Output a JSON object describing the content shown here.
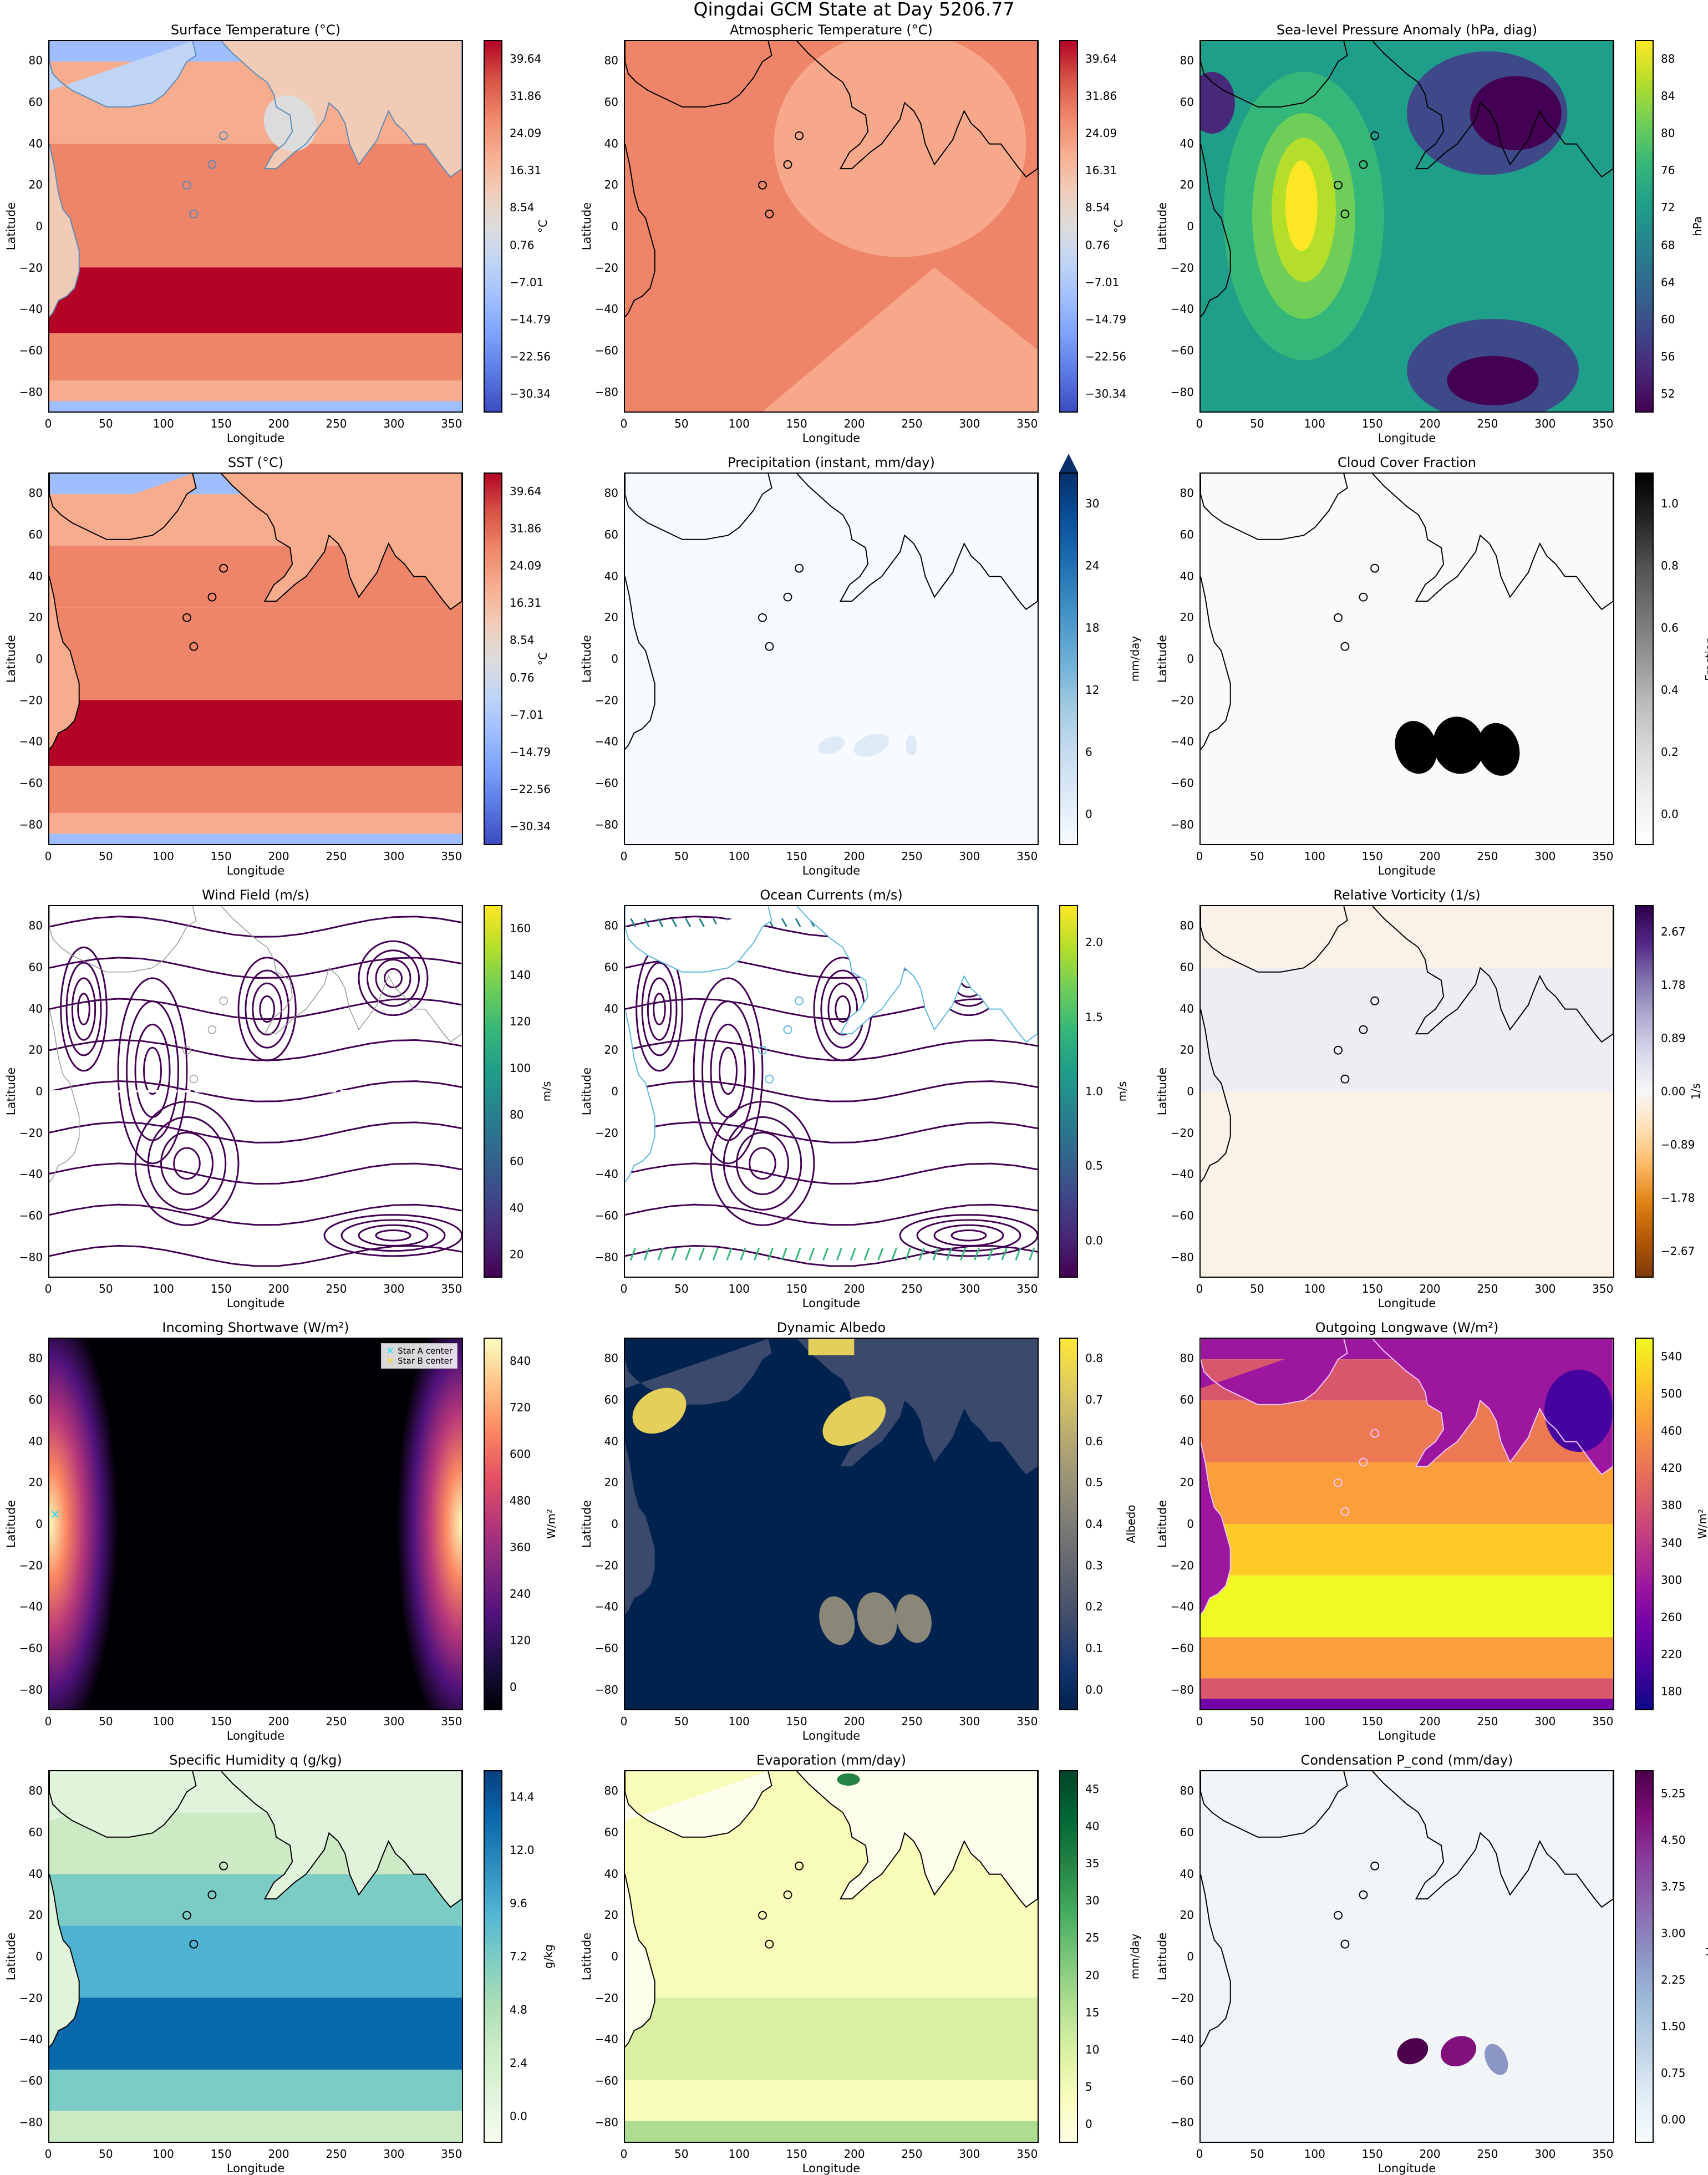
{
  "figure_title": "Qingdai GCM State at Day 5206.77",
  "chart_data": [
    {
      "type": "heatmap",
      "title": "Surface Temperature (°C)",
      "xlabel": "Longitude",
      "ylabel": "Latitude",
      "xlim": [
        0,
        360
      ],
      "ylim": [
        -90,
        90
      ],
      "xticks": [
        "0",
        "50",
        "100",
        "150",
        "200",
        "250",
        "300",
        "350"
      ],
      "yticks": [
        "80",
        "60",
        "40",
        "20",
        "0",
        "−20",
        "−40",
        "−60",
        "−80"
      ],
      "colorbar": {
        "label": "°C",
        "ticks": [
          "39.64",
          "31.86",
          "24.09",
          "16.31",
          "8.54",
          "0.76",
          "−7.01",
          "−14.79",
          "−22.56",
          "−30.34"
        ],
        "colors": [
          "#3b4cc0",
          "#5977e3",
          "#7b9ff9",
          "#9ebeff",
          "#c0d4f5",
          "#dddcdc",
          "#f2cbb7",
          "#f7ac8e",
          "#ee8468",
          "#d65244",
          "#b40426"
        ]
      },
      "field": "surface_temperature"
    },
    {
      "type": "heatmap",
      "title": "Atmospheric Temperature (°C)",
      "xlabel": "Longitude",
      "ylabel": "Latitude",
      "xlim": [
        0,
        360
      ],
      "ylim": [
        -90,
        90
      ],
      "xticks": [
        "0",
        "50",
        "100",
        "150",
        "200",
        "250",
        "300",
        "350"
      ],
      "yticks": [
        "80",
        "60",
        "40",
        "20",
        "0",
        "−20",
        "−40",
        "−60",
        "−80"
      ],
      "colorbar": {
        "label": "°C",
        "ticks": [
          "39.64",
          "31.86",
          "24.09",
          "16.31",
          "8.54",
          "0.76",
          "−7.01",
          "−14.79",
          "−22.56",
          "−30.34"
        ],
        "colors": [
          "#3b4cc0",
          "#5977e3",
          "#7b9ff9",
          "#9ebeff",
          "#c0d4f5",
          "#dddcdc",
          "#f2cbb7",
          "#f7ac8e",
          "#ee8468",
          "#d65244",
          "#b40426"
        ]
      },
      "field": "atmospheric_temperature"
    },
    {
      "type": "heatmap",
      "title": "Sea-level Pressure Anomaly (hPa, diag)",
      "xlabel": "Longitude",
      "ylabel": "Latitude",
      "xlim": [
        0,
        360
      ],
      "ylim": [
        -90,
        90
      ],
      "xticks": [
        "0",
        "50",
        "100",
        "150",
        "200",
        "250",
        "300",
        "350"
      ],
      "yticks": [
        "80",
        "60",
        "40",
        "20",
        "0",
        "−20",
        "−40",
        "−60",
        "−80"
      ],
      "colorbar": {
        "label": "hPa",
        "ticks": [
          "88",
          "84",
          "80",
          "76",
          "72",
          "68",
          "64",
          "60",
          "56",
          "52"
        ],
        "colors": [
          "#440154",
          "#482878",
          "#3e4989",
          "#31688e",
          "#26828e",
          "#1f9e89",
          "#35b779",
          "#6ece58",
          "#b5de2b",
          "#fde725"
        ]
      },
      "field": "slp_anomaly"
    },
    {
      "type": "heatmap",
      "title": "SST (°C)",
      "xlabel": "Longitude",
      "ylabel": "Latitude",
      "xlim": [
        0,
        360
      ],
      "ylim": [
        -90,
        90
      ],
      "xticks": [
        "0",
        "50",
        "100",
        "150",
        "200",
        "250",
        "300",
        "350"
      ],
      "yticks": [
        "80",
        "60",
        "40",
        "20",
        "0",
        "−20",
        "−40",
        "−60",
        "−80"
      ],
      "colorbar": {
        "label": "°C",
        "ticks": [
          "39.64",
          "31.86",
          "24.09",
          "16.31",
          "8.54",
          "0.76",
          "−7.01",
          "−14.79",
          "−22.56",
          "−30.34"
        ],
        "colors": [
          "#3b4cc0",
          "#5977e3",
          "#7b9ff9",
          "#9ebeff",
          "#c0d4f5",
          "#dddcdc",
          "#f2cbb7",
          "#f7ac8e",
          "#ee8468",
          "#d65244",
          "#b40426"
        ]
      },
      "field": "sst"
    },
    {
      "type": "heatmap",
      "title": "Precipitation (instant, mm/day)",
      "xlabel": "Longitude",
      "ylabel": "Latitude",
      "xlim": [
        0,
        360
      ],
      "ylim": [
        -90,
        90
      ],
      "xticks": [
        "0",
        "50",
        "100",
        "150",
        "200",
        "250",
        "300",
        "350"
      ],
      "yticks": [
        "80",
        "60",
        "40",
        "20",
        "0",
        "−20",
        "−40",
        "−60",
        "−80"
      ],
      "colorbar": {
        "label": "mm/day",
        "ticks": [
          "30",
          "24",
          "18",
          "12",
          "6",
          "0"
        ],
        "extend": "max",
        "colors": [
          "#f7fbff",
          "#deebf7",
          "#c6dbef",
          "#9ecae1",
          "#6baed6",
          "#4292c6",
          "#2171b5",
          "#08519c",
          "#08306b"
        ]
      },
      "field": "precipitation"
    },
    {
      "type": "heatmap",
      "title": "Cloud Cover Fraction",
      "xlabel": "Longitude",
      "ylabel": "Latitude",
      "xlim": [
        0,
        360
      ],
      "ylim": [
        -90,
        90
      ],
      "xticks": [
        "0",
        "50",
        "100",
        "150",
        "200",
        "250",
        "300",
        "350"
      ],
      "yticks": [
        "80",
        "60",
        "40",
        "20",
        "0",
        "−20",
        "−40",
        "−60",
        "−80"
      ],
      "colorbar": {
        "label": "Fraction",
        "ticks": [
          "1.0",
          "0.8",
          "0.6",
          "0.4",
          "0.2",
          "0.0"
        ],
        "colors": [
          "#ffffff",
          "#f0f0f0",
          "#d9d9d9",
          "#bdbdbd",
          "#969696",
          "#737373",
          "#525252",
          "#252525",
          "#000000"
        ]
      },
      "field": "cloud_cover"
    },
    {
      "type": "streamplot",
      "title": "Wind Field (m/s)",
      "xlabel": "Longitude",
      "ylabel": "Latitude",
      "xlim": [
        0,
        360
      ],
      "ylim": [
        -90,
        90
      ],
      "xticks": [
        "0",
        "50",
        "100",
        "150",
        "200",
        "250",
        "300",
        "350"
      ],
      "yticks": [
        "80",
        "60",
        "40",
        "20",
        "0",
        "−20",
        "−40",
        "−60",
        "−80"
      ],
      "colorbar": {
        "label": "m/s",
        "ticks": [
          "160",
          "140",
          "120",
          "100",
          "80",
          "60",
          "40",
          "20"
        ],
        "colors": [
          "#440154",
          "#482878",
          "#3e4989",
          "#31688e",
          "#26828e",
          "#1f9e89",
          "#35b779",
          "#6ece58",
          "#b5de2b",
          "#fde725"
        ]
      },
      "field": "wind"
    },
    {
      "type": "streamplot",
      "title": "Ocean Currents (m/s)",
      "xlabel": "Longitude",
      "ylabel": "Latitude",
      "xlim": [
        0,
        360
      ],
      "ylim": [
        -90,
        90
      ],
      "xticks": [
        "0",
        "50",
        "100",
        "150",
        "200",
        "250",
        "300",
        "350"
      ],
      "yticks": [
        "80",
        "60",
        "40",
        "20",
        "0",
        "−20",
        "−40",
        "−60",
        "−80"
      ],
      "colorbar": {
        "label": "m/s",
        "ticks": [
          "2.0",
          "1.5",
          "1.0",
          "0.5",
          "0.0"
        ],
        "colors": [
          "#440154",
          "#482878",
          "#3e4989",
          "#31688e",
          "#26828e",
          "#1f9e89",
          "#35b779",
          "#6ece58",
          "#b5de2b",
          "#fde725"
        ]
      },
      "field": "ocean"
    },
    {
      "type": "heatmap",
      "title": "Relative Vorticity (1/s)",
      "xlabel": "Longitude",
      "ylabel": "Latitude",
      "xlim": [
        0,
        360
      ],
      "ylim": [
        -90,
        90
      ],
      "xticks": [
        "0",
        "50",
        "100",
        "150",
        "200",
        "250",
        "300",
        "350"
      ],
      "yticks": [
        "80",
        "60",
        "40",
        "20",
        "0",
        "−20",
        "−40",
        "−60",
        "−80"
      ],
      "colorbar": {
        "label": "1/s",
        "ticks": [
          "2.67",
          "1.78",
          "0.89",
          "0.00",
          "−0.89",
          "−1.78",
          "−2.67"
        ],
        "colors": [
          "#7f3b08",
          "#b35806",
          "#e08214",
          "#fdb863",
          "#fee0b6",
          "#f7f7f7",
          "#d8daeb",
          "#b2abd2",
          "#8073ac",
          "#542788",
          "#2d004b"
        ]
      },
      "field": "vorticity"
    },
    {
      "type": "heatmap",
      "title": "Incoming Shortwave (W/m²)",
      "xlabel": "Longitude",
      "ylabel": "Latitude",
      "xlim": [
        0,
        360
      ],
      "ylim": [
        -90,
        90
      ],
      "xticks": [
        "0",
        "50",
        "100",
        "150",
        "200",
        "250",
        "300",
        "350"
      ],
      "yticks": [
        "80",
        "60",
        "40",
        "20",
        "0",
        "−20",
        "−40",
        "−60",
        "−80"
      ],
      "colorbar": {
        "label": "W/m²",
        "ticks": [
          "840",
          "720",
          "600",
          "480",
          "360",
          "240",
          "120",
          "0"
        ],
        "colors": [
          "#000004",
          "#1c1044",
          "#4f127b",
          "#812581",
          "#b5367a",
          "#e55064",
          "#fb8761",
          "#fec287",
          "#fcfdbf"
        ]
      },
      "legend": [
        {
          "label": "Star A center",
          "color": "#00e5ff",
          "marker": "×"
        },
        {
          "label": "Star B center",
          "color": "#ffd700",
          "marker": "×"
        }
      ],
      "field": "shortwave"
    },
    {
      "type": "heatmap",
      "title": "Dynamic Albedo",
      "xlabel": "Longitude",
      "ylabel": "Latitude",
      "xlim": [
        0,
        360
      ],
      "ylim": [
        -90,
        90
      ],
      "xticks": [
        "0",
        "50",
        "100",
        "150",
        "200",
        "250",
        "300",
        "350"
      ],
      "yticks": [
        "80",
        "60",
        "40",
        "20",
        "0",
        "−20",
        "−40",
        "−60",
        "−80"
      ],
      "colorbar": {
        "label": "Albedo",
        "ticks": [
          "0.8",
          "0.7",
          "0.6",
          "0.5",
          "0.4",
          "0.3",
          "0.2",
          "0.1",
          "0.0"
        ],
        "colors": [
          "#00224e",
          "#123570",
          "#3b496c",
          "#575d6d",
          "#707173",
          "#8a8779",
          "#a69d75",
          "#c4b56c",
          "#e4cf5b",
          "#fee838"
        ]
      },
      "field": "albedo"
    },
    {
      "type": "heatmap",
      "title": "Outgoing Longwave (W/m²)",
      "xlabel": "Longitude",
      "ylabel": "Latitude",
      "xlim": [
        0,
        360
      ],
      "ylim": [
        -90,
        90
      ],
      "xticks": [
        "0",
        "50",
        "100",
        "150",
        "200",
        "250",
        "300",
        "350"
      ],
      "yticks": [
        "80",
        "60",
        "40",
        "20",
        "0",
        "−20",
        "−40",
        "−60",
        "−80"
      ],
      "colorbar": {
        "label": "W/m²",
        "ticks": [
          "540",
          "500",
          "460",
          "420",
          "380",
          "340",
          "300",
          "260",
          "220",
          "180"
        ],
        "colors": [
          "#0d0887",
          "#46039f",
          "#7201a8",
          "#9c179e",
          "#bd3786",
          "#d8576b",
          "#ed7953",
          "#fb9f3a",
          "#fdca26",
          "#f0f921"
        ]
      },
      "field": "olr"
    },
    {
      "type": "heatmap",
      "title": "Specific Humidity q (g/kg)",
      "xlabel": "Longitude",
      "ylabel": "Latitude",
      "xlim": [
        0,
        360
      ],
      "ylim": [
        -90,
        90
      ],
      "xticks": [
        "0",
        "50",
        "100",
        "150",
        "200",
        "250",
        "300",
        "350"
      ],
      "yticks": [
        "80",
        "60",
        "40",
        "20",
        "0",
        "−20",
        "−40",
        "−60",
        "−80"
      ],
      "colorbar": {
        "label": "g/kg",
        "ticks": [
          "14.4",
          "12.0",
          "9.6",
          "7.2",
          "4.8",
          "2.4",
          "0.0"
        ],
        "colors": [
          "#f7fcf0",
          "#e0f3db",
          "#ccebc5",
          "#a8ddb5",
          "#7bccc4",
          "#4eb3d3",
          "#2b8cbe",
          "#0868ac",
          "#084081"
        ]
      },
      "field": "humidity"
    },
    {
      "type": "heatmap",
      "title": "Evaporation (mm/day)",
      "xlabel": "Longitude",
      "ylabel": "Latitude",
      "xlim": [
        0,
        360
      ],
      "ylim": [
        -90,
        90
      ],
      "xticks": [
        "0",
        "50",
        "100",
        "150",
        "200",
        "250",
        "300",
        "350"
      ],
      "yticks": [
        "80",
        "60",
        "40",
        "20",
        "0",
        "−20",
        "−40",
        "−60",
        "−80"
      ],
      "colorbar": {
        "label": "mm/day",
        "ticks": [
          "45",
          "40",
          "35",
          "30",
          "25",
          "20",
          "15",
          "10",
          "5",
          "0"
        ],
        "colors": [
          "#ffffe5",
          "#f7fcb9",
          "#d9f0a3",
          "#addd8e",
          "#78c679",
          "#41ab5d",
          "#238443",
          "#006837",
          "#004529"
        ]
      },
      "field": "evaporation"
    },
    {
      "type": "heatmap",
      "title": "Condensation P_cond (mm/day)",
      "xlabel": "Longitude",
      "ylabel": "Latitude",
      "xlim": [
        0,
        360
      ],
      "ylim": [
        -90,
        90
      ],
      "xticks": [
        "0",
        "50",
        "100",
        "150",
        "200",
        "250",
        "300",
        "350"
      ],
      "yticks": [
        "80",
        "60",
        "40",
        "20",
        "0",
        "−20",
        "−40",
        "−60",
        "−80"
      ],
      "colorbar": {
        "label": "mm/day",
        "ticks": [
          "5.25",
          "4.50",
          "3.75",
          "3.00",
          "2.25",
          "1.50",
          "0.75",
          "0.00"
        ],
        "colors": [
          "#f7fcfd",
          "#e0ecf4",
          "#bfd3e6",
          "#9ebcda",
          "#8c96c6",
          "#8c6bb1",
          "#88419d",
          "#810f7c",
          "#4d004b"
        ]
      },
      "field": "condensation"
    }
  ]
}
